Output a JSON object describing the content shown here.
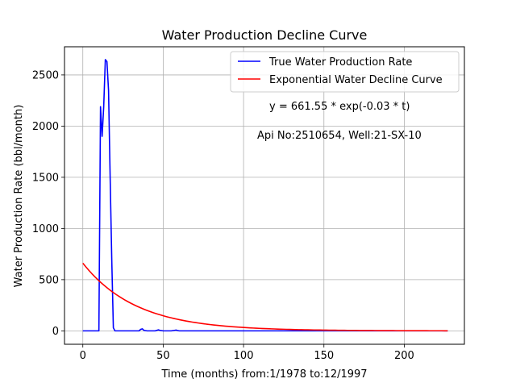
{
  "chart_data": {
    "type": "line",
    "title": "Water Production Decline Curve",
    "xlabel": "Time (months) from:1/1978 to:12/1997",
    "ylabel": "Water Production Rate (bbl/month)",
    "xlim": [
      -11.4,
      237.4
    ],
    "ylim": [
      -131,
      2775
    ],
    "xticks": [
      0,
      50,
      100,
      150,
      200
    ],
    "yticks": [
      0,
      500,
      1000,
      1500,
      2000,
      2500
    ],
    "grid": true,
    "legend_position": "top-right",
    "annotations": [
      "y = 661.55 * exp(-0.03 * t)",
      "Api No:2510654, Well:21-SX-10"
    ],
    "series": [
      {
        "name": "True Water Production Rate",
        "color": "#0000ff",
        "kind": "points",
        "x": [
          0,
          5,
          10,
          11,
          12,
          13,
          14,
          15,
          16,
          17,
          18,
          19,
          20,
          25,
          30,
          35,
          36,
          37,
          38,
          40,
          45,
          46,
          47,
          48,
          50,
          55,
          57,
          58,
          59,
          60,
          80,
          100,
          150,
          200,
          227
        ],
        "y": [
          0,
          0,
          0,
          2190,
          1900,
          2190,
          2650,
          2630,
          2350,
          1500,
          700,
          30,
          0,
          0,
          0,
          0,
          15,
          20,
          5,
          0,
          0,
          5,
          10,
          5,
          0,
          0,
          5,
          8,
          3,
          0,
          0,
          0,
          0,
          0,
          0
        ]
      },
      {
        "name": "Exponential Water Decline Curve",
        "color": "#ff0000",
        "kind": "exponential",
        "a": 661.55,
        "b": -0.03,
        "x_range": [
          0,
          227
        ]
      }
    ]
  }
}
